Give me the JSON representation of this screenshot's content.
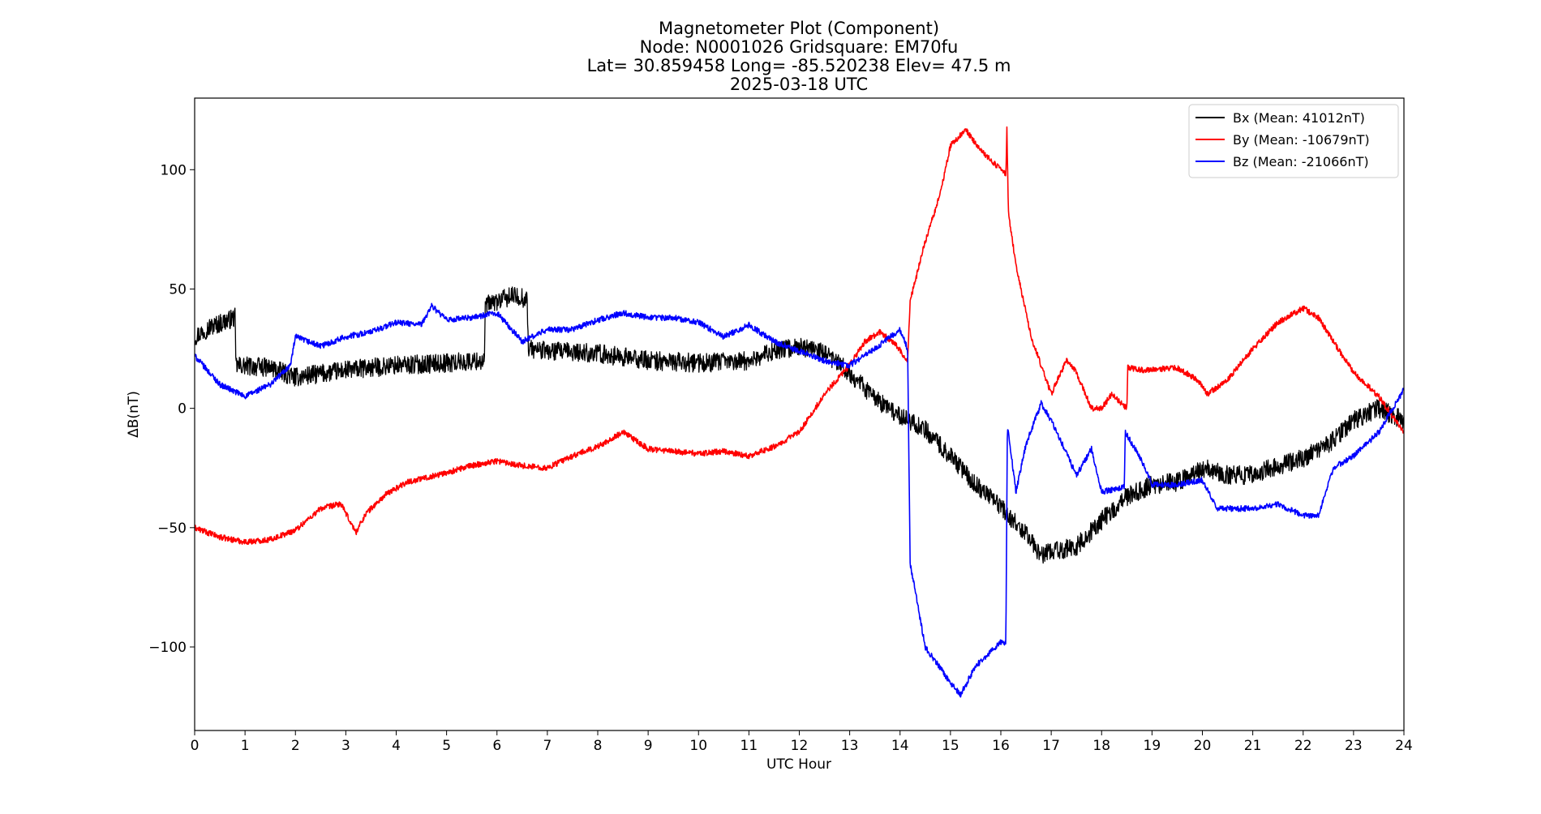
{
  "chart_data": {
    "type": "line",
    "title_lines": [
      "Magnetometer Plot (Component)",
      "Node:  N0001026     Gridsquare:  EM70fu",
      "Lat= 30.859458    Long= -85.520238    Elev= 47.5 m",
      "2025-03-18  UTC"
    ],
    "xlabel": "UTC Hour",
    "ylabel": "ΔB(nT)",
    "xlim": [
      0,
      24
    ],
    "ylim": [
      -135,
      130
    ],
    "xticks": [
      0,
      1,
      2,
      3,
      4,
      5,
      6,
      7,
      8,
      9,
      10,
      11,
      12,
      13,
      14,
      15,
      16,
      17,
      18,
      19,
      20,
      21,
      22,
      23,
      24
    ],
    "xtick_labels": [
      "0",
      "1",
      "2",
      "3",
      "4",
      "5",
      "6",
      "7",
      "8",
      "9",
      "10",
      "11",
      "12",
      "13",
      "14",
      "15",
      "16",
      "17",
      "18",
      "19",
      "20",
      "21",
      "22",
      "23",
      "24"
    ],
    "yticks": [
      100,
      50,
      0,
      -50,
      -100
    ],
    "ytick_labels": [
      "100",
      "50",
      "0",
      "−50",
      "−100"
    ],
    "grid": false,
    "legend_position": "top-right",
    "series": [
      {
        "name": "Bx",
        "label": "Bx (Mean: 41012nT)",
        "color": "#000000",
        "noise": 4,
        "x": [
          0,
          0.3,
          0.8,
          0.82,
          1.5,
          2,
          3,
          4,
          5,
          5.75,
          5.77,
          6.3,
          6.6,
          6.62,
          7,
          8,
          9,
          10,
          11,
          11.5,
          12,
          12.5,
          13,
          13.5,
          14,
          14.5,
          15,
          15.5,
          16,
          16.5,
          16.8,
          17,
          17.5,
          18,
          18.5,
          19,
          19.5,
          20,
          20.5,
          21,
          21.5,
          22,
          22.5,
          23,
          23.5,
          24
        ],
        "y": [
          30,
          34,
          38,
          18,
          17,
          13,
          16,
          18,
          19,
          20,
          43,
          47,
          46,
          25,
          24,
          23,
          20,
          19,
          20,
          24,
          26,
          23,
          15,
          4,
          -3,
          -9,
          -20,
          -32,
          -41,
          -53,
          -62,
          -60,
          -58,
          -47,
          -37,
          -32,
          -31,
          -25,
          -28,
          -28,
          -24,
          -21,
          -15,
          -5,
          0,
          -5
        ]
      },
      {
        "name": "By",
        "label": "By (Mean: -10679nT)",
        "color": "#ff0000",
        "noise": 1.2,
        "x": [
          0,
          0.5,
          1,
          1.5,
          2,
          2.5,
          2.9,
          3.2,
          3.4,
          3.8,
          4.2,
          5,
          5.5,
          6,
          6.5,
          7,
          7.5,
          8,
          8.5,
          9,
          9.5,
          10,
          10.5,
          11,
          11.5,
          12,
          12.5,
          13,
          13.3,
          13.6,
          13.9,
          14.15,
          14.2,
          14.5,
          14.8,
          15,
          15.3,
          15.6,
          16.1,
          16.12,
          16.15,
          16.3,
          16.6,
          17,
          17.3,
          17.5,
          17.8,
          18,
          18.2,
          18.5,
          18.52,
          18.8,
          19.5,
          19.9,
          20.1,
          20.5,
          21,
          21.5,
          22,
          22.3,
          22.6,
          23,
          23.5,
          24
        ],
        "y": [
          -50,
          -54,
          -56,
          -55,
          -51,
          -42,
          -40,
          -52,
          -44,
          -36,
          -31,
          -27,
          -24,
          -22,
          -24,
          -25,
          -20,
          -16,
          -10,
          -17,
          -18,
          -19,
          -18,
          -20,
          -16,
          -10,
          6,
          18,
          28,
          32,
          27,
          20,
          45,
          70,
          90,
          110,
          117,
          108,
          98,
          117,
          82,
          60,
          30,
          6,
          20,
          15,
          0,
          0,
          6,
          0,
          17,
          16,
          17,
          12,
          6,
          12,
          25,
          36,
          42,
          38,
          28,
          15,
          5,
          -10
        ]
      },
      {
        "name": "Bz",
        "label": "Bz (Mean: -21066nT)",
        "color": "#0000ff",
        "noise": 1.2,
        "x": [
          0,
          0.5,
          1,
          1.5,
          1.9,
          2,
          2.5,
          3,
          3.5,
          4,
          4.5,
          4.7,
          5,
          5.5,
          6,
          6.5,
          7,
          7.5,
          8,
          8.5,
          9,
          9.5,
          10,
          10.5,
          11,
          11.5,
          12,
          12.5,
          13,
          13.5,
          14,
          14.15,
          14.2,
          14.5,
          15,
          15.2,
          15.5,
          16,
          16.1,
          16.13,
          16.3,
          16.5,
          16.8,
          17,
          17.5,
          17.8,
          18,
          18.45,
          18.47,
          18.8,
          19,
          19.5,
          20,
          20.3,
          21,
          21.5,
          22,
          22.3,
          22.6,
          23,
          23.5,
          24
        ],
        "y": [
          22,
          10,
          5,
          10,
          18,
          30,
          26,
          30,
          32,
          36,
          35,
          43,
          37,
          38,
          40,
          28,
          33,
          33,
          37,
          40,
          38,
          38,
          36,
          30,
          35,
          28,
          24,
          20,
          18,
          25,
          33,
          25,
          -65,
          -100,
          -115,
          -120,
          -108,
          -98,
          -98,
          -7,
          -35,
          -15,
          2,
          -5,
          -28,
          -17,
          -35,
          -33,
          -10,
          -22,
          -32,
          -32,
          -30,
          -42,
          -42,
          -40,
          -45,
          -45,
          -25,
          -20,
          -10,
          8
        ]
      }
    ]
  }
}
